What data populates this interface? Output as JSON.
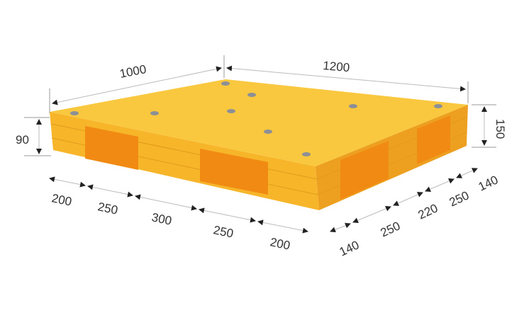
{
  "colors": {
    "top": "#f9c437",
    "front": "#f7b52a",
    "side": "#f0a51f",
    "opening": "#f08a12",
    "bolt": "#8c8f96",
    "dimension_line": "#9a9a9a"
  },
  "dimensions": {
    "width": "1000",
    "length": "1200",
    "entry_height": "90",
    "total_height": "150",
    "front_segments": [
      "200",
      "250",
      "300",
      "250",
      "200"
    ],
    "side_segments": [
      "140",
      "250",
      "220",
      "250",
      "140"
    ]
  }
}
